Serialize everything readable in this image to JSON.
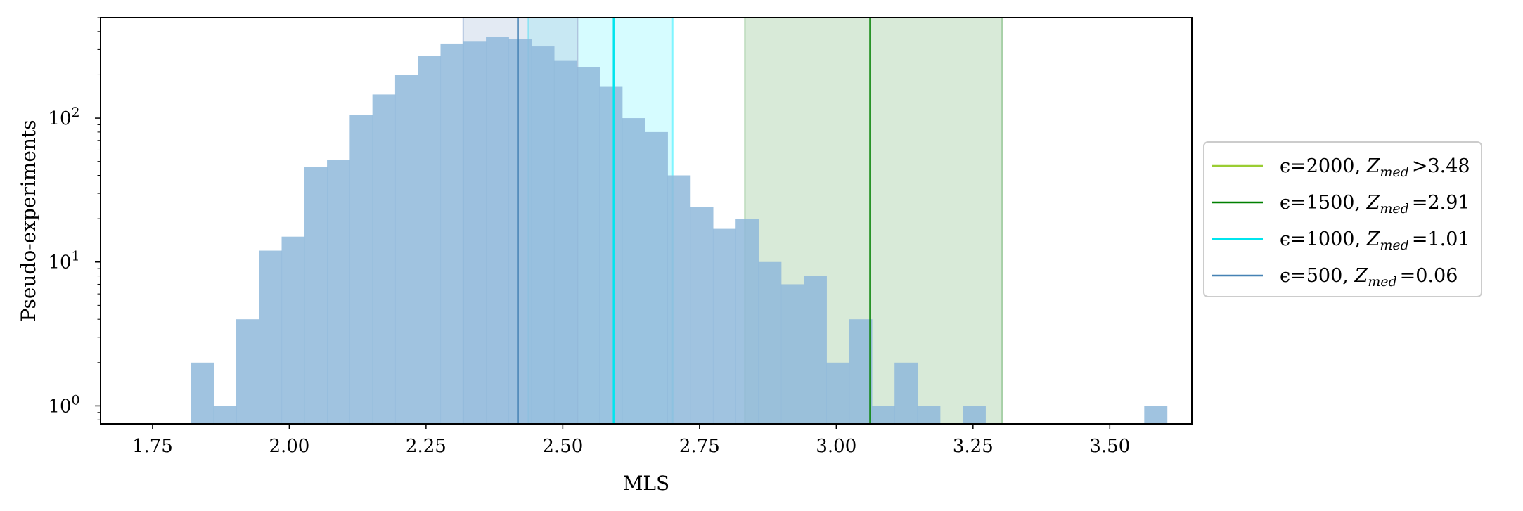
{
  "chart_data": {
    "type": "bar",
    "title": "",
    "xlabel": "MLS",
    "ylabel": "Pseudo-experiments",
    "xlim": [
      1.655,
      3.65
    ],
    "ylim": [
      0.75,
      500
    ],
    "yscale": "log",
    "grid": false,
    "legend_position": "right, outside plot",
    "xticks": [
      1.75,
      2.0,
      2.25,
      2.5,
      2.75,
      3.0,
      3.25,
      3.5
    ],
    "xtick_labels": [
      "1.75",
      "2.00",
      "2.25",
      "2.50",
      "2.75",
      "3.00",
      "3.25",
      "3.50"
    ],
    "yticks": [
      1,
      10,
      100
    ],
    "ytick_labels": [
      {
        "base": "10",
        "exp": "0"
      },
      {
        "base": "10",
        "exp": "1"
      },
      {
        "base": "10",
        "exp": "2"
      }
    ],
    "histogram": {
      "color": "#8fb9da",
      "bin_start": 1.82,
      "bin_width": 0.0415,
      "counts": [
        2,
        1,
        4,
        12,
        15,
        46,
        51,
        105,
        146,
        200,
        270,
        330,
        340,
        365,
        355,
        315,
        250,
        225,
        165,
        100,
        80,
        40,
        24,
        17,
        20,
        10,
        7,
        8,
        2,
        4,
        1,
        2,
        1,
        0,
        1,
        0,
        0,
        0,
        0,
        0,
        0,
        0,
        1
      ]
    },
    "series": [
      {
        "name": "ϵ=2000, Z_med >3.48",
        "label_prefix": "ϵ=2000, ",
        "z_sub": "med",
        "z_rel": ">3.48",
        "color": "#9acd32",
        "line": null,
        "band": null
      },
      {
        "name": "ϵ=1500, Z_med =2.91",
        "label_prefix": "ϵ=1500, ",
        "z_sub": "med",
        "z_rel": "=2.91",
        "color": "#008000",
        "line": 3.062,
        "band": [
          2.833,
          3.303
        ],
        "band_color": "#a8d0a8",
        "band_opacity": 0.45
      },
      {
        "name": "ϵ=1000, Z_med =1.01",
        "label_prefix": "ϵ=1000, ",
        "z_sub": "med",
        "z_rel": "=1.01",
        "color": "#00e5ee",
        "line": 2.593,
        "band": [
          2.437,
          2.701
        ],
        "band_color": "#7ff5ff",
        "band_opacity": 0.32
      },
      {
        "name": "ϵ=500, Z_med =0.06",
        "label_prefix": "ϵ=500, ",
        "z_sub": "med",
        "z_rel": "=0.06",
        "color": "#4682b4",
        "line": 2.418,
        "band": [
          2.318,
          2.527
        ],
        "band_color": "#b0c4de",
        "band_opacity": 0.35
      }
    ]
  }
}
